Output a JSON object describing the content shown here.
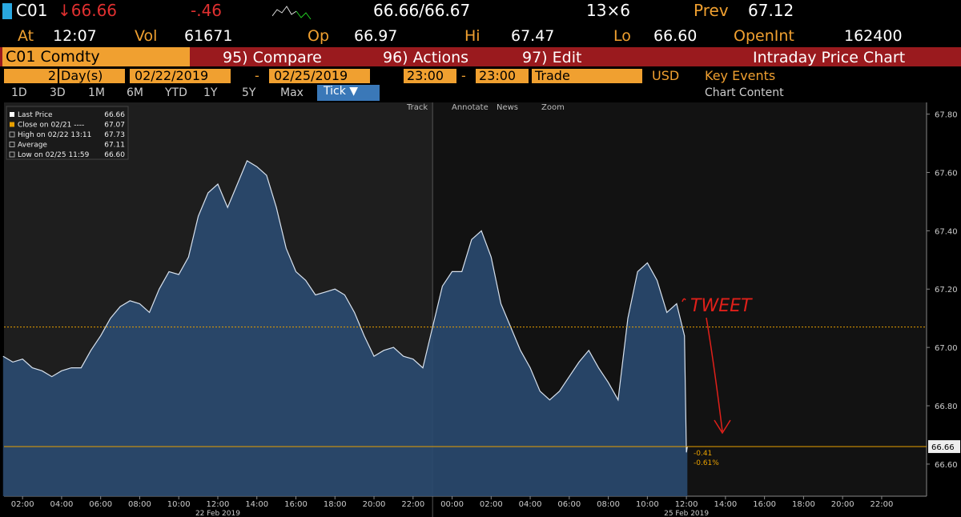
{
  "header": {
    "ticker": "C01",
    "last": "↓66.66",
    "change": "-.46",
    "bid_ask": "66.66/66.67",
    "size": "13×6",
    "prev_label": "Prev",
    "prev": "67.12",
    "at_label": "At",
    "at": "12:07",
    "vol_label": "Vol",
    "vol": "61671",
    "op_label": "Op",
    "op": "66.97",
    "hi_label": "Hi",
    "hi": "67.47",
    "lo_label": "Lo",
    "lo": "66.60",
    "oi_label": "OpenInt",
    "oi": "162400"
  },
  "toolbar": {
    "security": "C01 Comdty",
    "compare": "95) Compare",
    "actions": "96) Actions",
    "edit": "97) Edit",
    "function": "Intraday Price Chart"
  },
  "settings": {
    "days": "2",
    "days_unit": "Day(s)",
    "start": "02/22/2019",
    "dash1": "-",
    "end": "02/25/2019",
    "time_start": "23:00",
    "dash2": "-",
    "time_end": "23:00",
    "field": "Trade",
    "currency": "USD",
    "key_events": "Key Events"
  },
  "ranges": [
    "1D",
    "3D",
    "1M",
    "6M",
    "YTD",
    "1Y",
    "5Y",
    "Max"
  ],
  "interval": "Tick ▼",
  "chart_content": "Chart Content",
  "tools": [
    "Track",
    "Annotate",
    "News",
    "Zoom"
  ],
  "chart_data": {
    "type": "area",
    "color": "#2a4a70",
    "line_color": "#d8e2ee",
    "x": [
      1,
      1.5,
      2,
      2.5,
      3,
      3.5,
      4,
      4.5,
      5,
      5.5,
      6,
      6.5,
      7,
      7.5,
      8,
      8.5,
      9,
      9.5,
      10,
      10.5,
      11,
      11.5,
      12,
      12.5,
      13,
      13.5,
      14,
      14.5,
      15,
      15.5,
      16,
      16.5,
      17,
      17.5,
      18,
      18.5,
      19,
      19.5,
      20,
      20.5,
      21,
      21.5,
      22,
      22.5,
      23,
      23.5,
      24,
      24.5,
      25,
      25.5,
      26,
      26.5,
      27,
      27.5,
      28,
      28.5,
      29,
      29.5,
      30,
      30.5,
      31,
      31.5,
      32,
      32.5,
      33,
      33.5,
      34,
      34.5,
      35,
      35.5,
      35.9,
      36,
      36.05
    ],
    "values": [
      66.97,
      66.95,
      66.96,
      66.93,
      66.92,
      66.9,
      66.92,
      66.93,
      66.93,
      66.99,
      67.04,
      67.1,
      67.14,
      67.16,
      67.15,
      67.12,
      67.2,
      67.26,
      67.25,
      67.31,
      67.45,
      67.53,
      67.56,
      67.48,
      67.56,
      67.64,
      67.62,
      67.59,
      67.48,
      67.34,
      67.26,
      67.23,
      67.18,
      67.19,
      67.2,
      67.18,
      67.12,
      67.04,
      66.97,
      66.99,
      67,
      66.97,
      66.96,
      66.93,
      67.07,
      67.21,
      67.26,
      67.26,
      67.37,
      67.4,
      67.31,
      67.15,
      67.07,
      66.99,
      66.93,
      66.85,
      66.82,
      66.85,
      66.9,
      66.95,
      66.99,
      66.93,
      66.88,
      66.82,
      67.1,
      67.26,
      67.29,
      67.23,
      67.12,
      67.15,
      67.04,
      66.64,
      66.66
    ],
    "xlim": [
      1.05,
      48.3
    ],
    "ylim": [
      66.49,
      67.84
    ],
    "yticks": [
      {
        "value": 66.6,
        "label": "66.60"
      },
      {
        "value": 66.8,
        "label": "66.80"
      },
      {
        "value": 67,
        "label": "67.00"
      },
      {
        "value": 67.2,
        "label": "67.20"
      },
      {
        "value": 67.4,
        "label": "67.40"
      },
      {
        "value": 67.6,
        "label": "67.60"
      },
      {
        "value": 67.8,
        "label": "67.80"
      }
    ],
    "xticks": [
      {
        "value": 2,
        "label": "02:00"
      },
      {
        "value": 4,
        "label": "04:00"
      },
      {
        "value": 6,
        "label": "06:00"
      },
      {
        "value": 8,
        "label": "08:00"
      },
      {
        "value": 10,
        "label": "10:00"
      },
      {
        "value": 12,
        "label": "12:00"
      },
      {
        "value": 14,
        "label": "14:00"
      },
      {
        "value": 16,
        "label": "16:00"
      },
      {
        "value": 18,
        "label": "18:00"
      },
      {
        "value": 20,
        "label": "20:00"
      },
      {
        "value": 22,
        "label": "22:00"
      },
      {
        "value": 24,
        "label": "00:00"
      },
      {
        "value": 26,
        "label": "02:00"
      },
      {
        "value": 28,
        "label": "04:00"
      },
      {
        "value": 30,
        "label": "06:00"
      },
      {
        "value": 32,
        "label": "08:00"
      },
      {
        "value": 34,
        "label": "10:00"
      },
      {
        "value": 36,
        "label": "12:00"
      },
      {
        "value": 38,
        "label": "14:00"
      },
      {
        "value": 40,
        "label": "16:00"
      },
      {
        "value": 42,
        "label": "18:00"
      },
      {
        "value": 44,
        "label": "20:00"
      },
      {
        "value": 46,
        "label": "22:00"
      }
    ],
    "day_labels": [
      {
        "x": 12,
        "label": "22 Feb 2019"
      },
      {
        "x": 36,
        "label": "25 Feb 2019"
      }
    ],
    "reference_lines": [
      {
        "name": "Close on 02/21",
        "value": 67.07,
        "color": "#e8a000",
        "style": "dotted"
      },
      {
        "name": "Last Price",
        "value": 66.66,
        "color": "#e8a000",
        "style": "solid"
      }
    ],
    "legend": [
      {
        "name": "Last Price",
        "value": "66.66"
      },
      {
        "name": "Close on 02/21 ----",
        "value": "67.07"
      },
      {
        "name": "High on 02/22 13:11",
        "value": "67.73"
      },
      {
        "name": "Average",
        "value": "67.11"
      },
      {
        "name": "Low on 02/25 11:59",
        "value": "66.60"
      }
    ],
    "change_labels": [
      "-0.41",
      "-0.61%"
    ],
    "annotation": "TWEET"
  }
}
